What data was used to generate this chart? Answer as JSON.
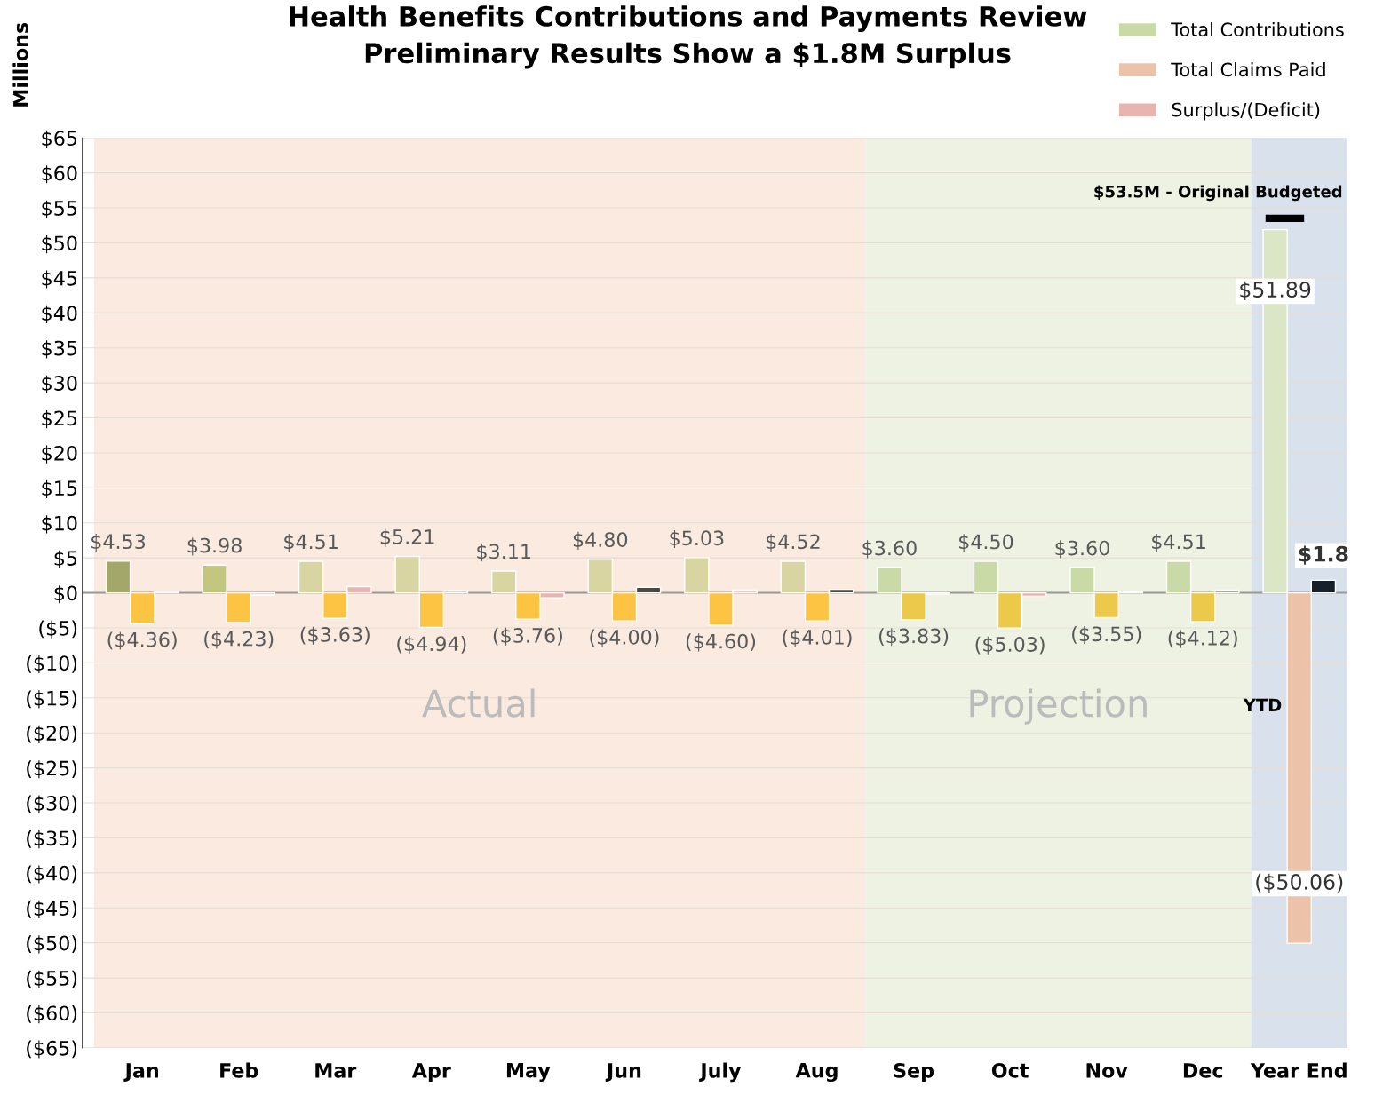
{
  "chart_data": {
    "type": "bar",
    "title": "Health Benefits Contributions and Payments Review\nPreliminary Results Show a $1.8M Surplus",
    "ylabel": "Millions",
    "categories": [
      "Jan",
      "Feb",
      "Mar",
      "Apr",
      "May",
      "Jun",
      "July",
      "Aug",
      "Sep",
      "Oct",
      "Nov",
      "Dec",
      "Year End"
    ],
    "series": [
      {
        "name": "Total Contributions",
        "color": "#c9daa6",
        "colors": [
          "#a3a86a",
          "#c3c67f",
          "#d8d5a3",
          "#d8d5a3",
          "#d8d5a3",
          "#d8d5a3",
          "#d8d5a3",
          "#d8d5a3",
          "#c9daa6",
          "#c9daa6",
          "#c9daa6",
          "#c9daa6",
          "#dbe6c6"
        ],
        "values": [
          4.53,
          3.98,
          4.51,
          5.21,
          3.11,
          4.8,
          5.03,
          4.52,
          3.6,
          4.5,
          3.6,
          4.51,
          51.89
        ],
        "value_labels": [
          "$4.53",
          "$3.98",
          "$4.51",
          "$5.21",
          "$3.11",
          "$4.80",
          "$5.03",
          "$4.52",
          "$3.60",
          "$4.50",
          "$3.60",
          "$4.51",
          "$51.89"
        ]
      },
      {
        "name": "Total Claims Paid",
        "color": "#ecc3a8",
        "colors": [
          "#fcc442",
          "#fcc442",
          "#fcc442",
          "#fcc442",
          "#fcc442",
          "#fcc442",
          "#fcc442",
          "#fcc442",
          "#ecc94b",
          "#ecc94b",
          "#ecc94b",
          "#ecc94b",
          "#ecc3a8"
        ],
        "values": [
          -4.36,
          -4.23,
          -3.63,
          -4.94,
          -3.76,
          -4.0,
          -4.6,
          -4.01,
          -3.83,
          -5.03,
          -3.55,
          -4.12,
          -50.06
        ],
        "value_labels": [
          "($4.36)",
          "($4.23)",
          "($3.63)",
          "($4.94)",
          "($3.76)",
          "($4.00)",
          "($4.60)",
          "($4.01)",
          "($3.83)",
          "($5.03)",
          "($3.55)",
          "($4.12)",
          "($50.06)"
        ]
      },
      {
        "name": "Surplus/(Deficit)",
        "color": "#e8b4b0",
        "colors": [
          "#d9d6cc",
          "#d9d6cc",
          "#e8b4b0",
          "#d9d6cc",
          "#e8b4b0",
          "#4a4a40",
          "#f0c8c4",
          "#4a4a40",
          "#d9d6cc",
          "#e8b4b0",
          "#d9d6cc",
          "#a8ab98",
          "#15202b"
        ],
        "values": [
          0.2,
          -0.3,
          0.9,
          0.3,
          -0.7,
          0.8,
          0.4,
          0.5,
          -0.2,
          -0.5,
          0.1,
          0.4,
          1.8
        ],
        "value_labels": [
          null,
          null,
          null,
          null,
          null,
          null,
          null,
          null,
          null,
          null,
          null,
          null,
          "$1.8"
        ]
      }
    ],
    "ylim": [
      -65,
      65
    ],
    "yticks": [
      {
        "value": -65,
        "label": "($65)"
      },
      {
        "value": -60,
        "label": "($60)"
      },
      {
        "value": -55,
        "label": "($55)"
      },
      {
        "value": -50,
        "label": "($50)"
      },
      {
        "value": -45,
        "label": "($45)"
      },
      {
        "value": -40,
        "label": "($40)"
      },
      {
        "value": -35,
        "label": "($35)"
      },
      {
        "value": -30,
        "label": "($30)"
      },
      {
        "value": -25,
        "label": "($25)"
      },
      {
        "value": -20,
        "label": "($20)"
      },
      {
        "value": -15,
        "label": "($15)"
      },
      {
        "value": -10,
        "label": "($10)"
      },
      {
        "value": -5,
        "label": "($5)"
      },
      {
        "value": 0,
        "label": "$0"
      },
      {
        "value": 5,
        "label": "$5"
      },
      {
        "value": 10,
        "label": "$10"
      },
      {
        "value": 15,
        "label": "$15"
      },
      {
        "value": 20,
        "label": "$20"
      },
      {
        "value": 25,
        "label": "$25"
      },
      {
        "value": 30,
        "label": "$30"
      },
      {
        "value": 35,
        "label": "$35"
      },
      {
        "value": 40,
        "label": "$40"
      },
      {
        "value": 45,
        "label": "$45"
      },
      {
        "value": 50,
        "label": "$50"
      },
      {
        "value": 55,
        "label": "$55"
      },
      {
        "value": 60,
        "label": "$60"
      },
      {
        "value": 65,
        "label": "$65"
      }
    ],
    "bands": [
      {
        "axis": "x",
        "from": "Jan",
        "to": "Aug",
        "label": "Actual",
        "color": "#fbeadf"
      },
      {
        "axis": "x",
        "from": "Sep",
        "to": "Dec",
        "label": "Projection",
        "color": "#eef2e3"
      },
      {
        "axis": "x",
        "from": "Year End",
        "to": "Year End",
        "label": "YTD",
        "color": "#d9e1ec"
      }
    ],
    "ref_lines": [
      {
        "axis": "y",
        "value": 53.5,
        "label": "$53.5M - Original Budgeted",
        "color": "#000000"
      }
    ],
    "grid": "y",
    "legend": "top right"
  }
}
